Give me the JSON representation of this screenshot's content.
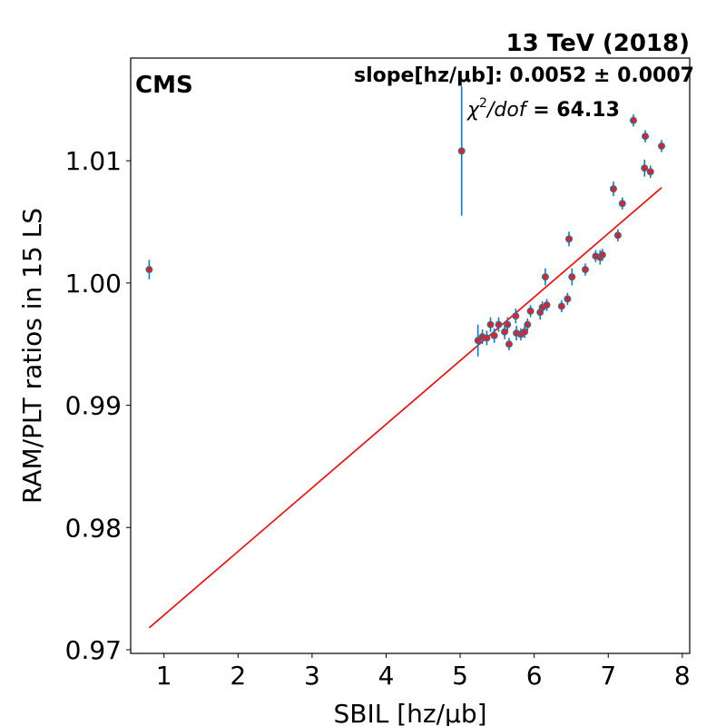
{
  "chart_data": {
    "type": "scatter",
    "xlabel": "SBIL [hz/μb]",
    "ylabel": "RAM/PLT ratios in 15 LS",
    "xlim": [
      0.55,
      8.1
    ],
    "ylim": [
      0.9697,
      1.0184
    ],
    "xticks": [
      1,
      2,
      3,
      4,
      5,
      6,
      7,
      8
    ],
    "xtick_labels": [
      "1",
      "2",
      "3",
      "4",
      "5",
      "6",
      "7",
      "8"
    ],
    "yticks": [
      0.97,
      0.98,
      0.99,
      1.0,
      1.01
    ],
    "ytick_labels": [
      "0.97",
      "0.98",
      "0.99",
      "1.00",
      "1.01"
    ],
    "grid": false,
    "colors": {
      "marker_fill": "#d62728",
      "marker_edge": "#1f77b4",
      "errorbar": "#1f77b4",
      "fit_line": "#ff0000"
    },
    "series": [
      {
        "kind": "errorbar",
        "points": [
          {
            "x": 0.8,
            "y": 1.0011,
            "err": 0.0008
          },
          {
            "x": 5.02,
            "y": 1.0108,
            "err": 0.0053
          },
          {
            "x": 5.24,
            "y": 0.9953,
            "err": 0.0013
          },
          {
            "x": 5.3,
            "y": 0.9956,
            "err": 0.0006
          },
          {
            "x": 5.36,
            "y": 0.9955,
            "err": 0.0006
          },
          {
            "x": 5.41,
            "y": 0.9966,
            "err": 0.0006
          },
          {
            "x": 5.46,
            "y": 0.9957,
            "err": 0.0006
          },
          {
            "x": 5.52,
            "y": 0.9966,
            "err": 0.0006
          },
          {
            "x": 5.6,
            "y": 0.996,
            "err": 0.0006
          },
          {
            "x": 5.64,
            "y": 0.9966,
            "err": 0.0006
          },
          {
            "x": 5.66,
            "y": 0.995,
            "err": 0.0005
          },
          {
            "x": 5.75,
            "y": 0.9973,
            "err": 0.0006
          },
          {
            "x": 5.76,
            "y": 0.9959,
            "err": 0.0006
          },
          {
            "x": 5.82,
            "y": 0.9958,
            "err": 0.0005
          },
          {
            "x": 5.87,
            "y": 0.996,
            "err": 0.0005
          },
          {
            "x": 5.91,
            "y": 0.9966,
            "err": 0.0005
          },
          {
            "x": 5.95,
            "y": 0.9977,
            "err": 0.0005
          },
          {
            "x": 6.08,
            "y": 0.9976,
            "err": 0.0006
          },
          {
            "x": 6.11,
            "y": 0.998,
            "err": 0.0005
          },
          {
            "x": 6.15,
            "y": 1.0005,
            "err": 0.0007
          },
          {
            "x": 6.17,
            "y": 0.9982,
            "err": 0.0005
          },
          {
            "x": 6.37,
            "y": 0.9981,
            "err": 0.0005
          },
          {
            "x": 6.45,
            "y": 0.9987,
            "err": 0.0005
          },
          {
            "x": 6.47,
            "y": 1.0036,
            "err": 0.0006
          },
          {
            "x": 6.51,
            "y": 1.0005,
            "err": 0.0007
          },
          {
            "x": 6.69,
            "y": 1.0011,
            "err": 0.0005
          },
          {
            "x": 6.83,
            "y": 1.0022,
            "err": 0.0005
          },
          {
            "x": 6.89,
            "y": 1.0021,
            "err": 0.0006
          },
          {
            "x": 6.92,
            "y": 1.0023,
            "err": 0.0005
          },
          {
            "x": 7.07,
            "y": 1.0077,
            "err": 0.0006
          },
          {
            "x": 7.13,
            "y": 1.0039,
            "err": 0.0005
          },
          {
            "x": 7.19,
            "y": 1.0065,
            "err": 0.0005
          },
          {
            "x": 7.34,
            "y": 1.0133,
            "err": 0.0005
          },
          {
            "x": 7.49,
            "y": 1.0094,
            "err": 0.0007
          },
          {
            "x": 7.5,
            "y": 1.012,
            "err": 0.0005
          },
          {
            "x": 7.57,
            "y": 1.0091,
            "err": 0.0005
          },
          {
            "x": 7.72,
            "y": 1.0112,
            "err": 0.0005
          }
        ]
      },
      {
        "kind": "line",
        "x": [
          0.8,
          7.72
        ],
        "y": [
          0.9718,
          1.0078
        ]
      }
    ],
    "annotations": {
      "cms_label": "CMS",
      "energy_label": "13 TeV (2018)",
      "slope_text": "slope[hz/μb]: 0.0052 ± 0.0007",
      "chi2_symbol": "χ",
      "chi2_sup": "2",
      "chi2_denominator": "/dof",
      "chi2_value": " = 64.13"
    }
  }
}
